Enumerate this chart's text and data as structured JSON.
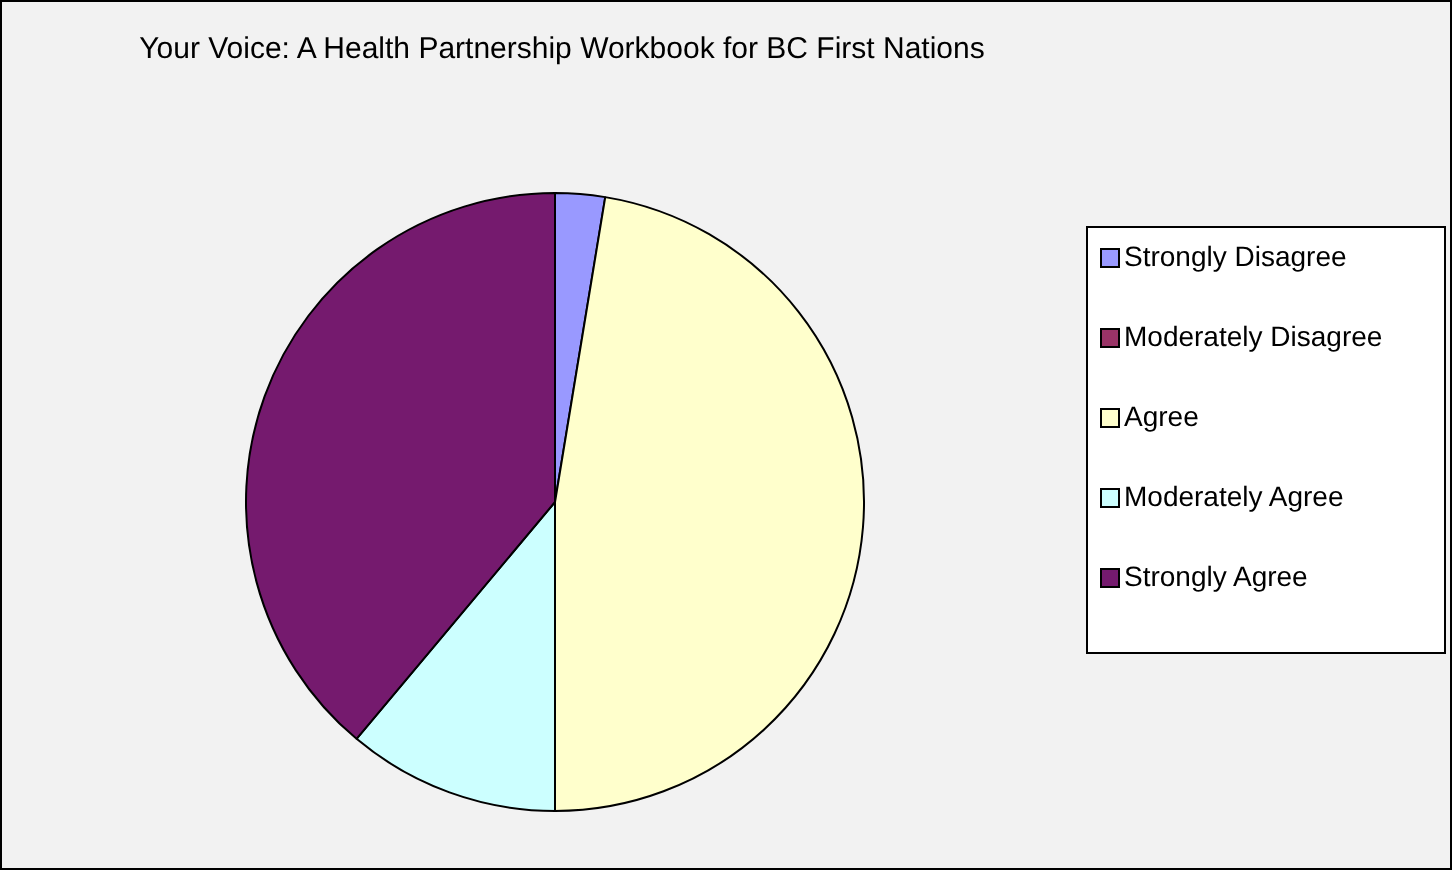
{
  "chart_data": {
    "type": "pie",
    "title": "Your Voice: A Health Partnership Workbook for BC First Nations",
    "categories": [
      "Strongly Disagree",
      "Moderately Disagree",
      "Agree",
      "Moderately Agree",
      "Strongly Agree"
    ],
    "values": [
      2.6,
      0,
      47.4,
      11.1,
      38.9
    ],
    "colors": [
      "#9999ff",
      "#993366",
      "#ffffcc",
      "#ccffff",
      "#751a6e"
    ],
    "legend": "right"
  }
}
